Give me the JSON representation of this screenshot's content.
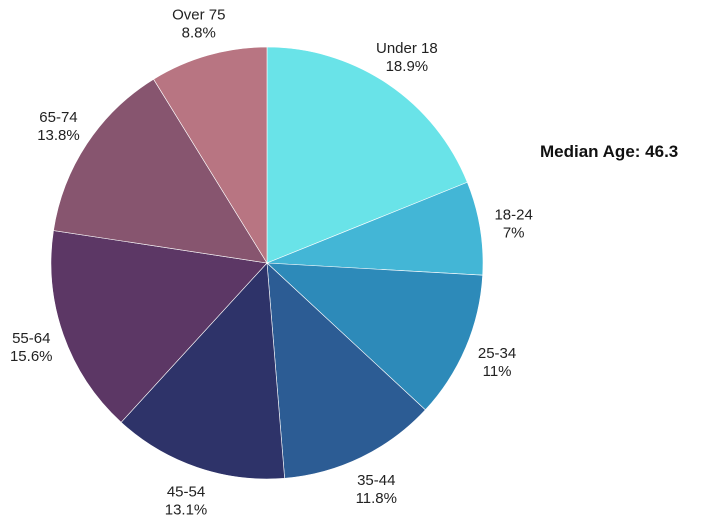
{
  "chart_data": {
    "type": "pie",
    "title": "",
    "annotation": "Median Age: 46.3",
    "slices": [
      {
        "label": "Under 18",
        "value": 18.9,
        "value_label": "18.9%",
        "color": "#69e3e8"
      },
      {
        "label": "18-24",
        "value": 7,
        "value_label": "7%",
        "color": "#43b6d6"
      },
      {
        "label": "25-34",
        "value": 11,
        "value_label": "11%",
        "color": "#2d8ab9"
      },
      {
        "label": "35-44",
        "value": 11.8,
        "value_label": "11.8%",
        "color": "#2c5c94"
      },
      {
        "label": "45-54",
        "value": 13.1,
        "value_label": "13.1%",
        "color": "#2e3369"
      },
      {
        "label": "55-64",
        "value": 15.6,
        "value_label": "15.6%",
        "color": "#5c3765"
      },
      {
        "label": "65-74",
        "value": 13.8,
        "value_label": "13.8%",
        "color": "#87556f"
      },
      {
        "label": "Over 75",
        "value": 8.8,
        "value_label": "8.8%",
        "color": "#b87582"
      }
    ],
    "start_angle": "12 o'clock",
    "direction": "clockwise",
    "legend": "none"
  }
}
